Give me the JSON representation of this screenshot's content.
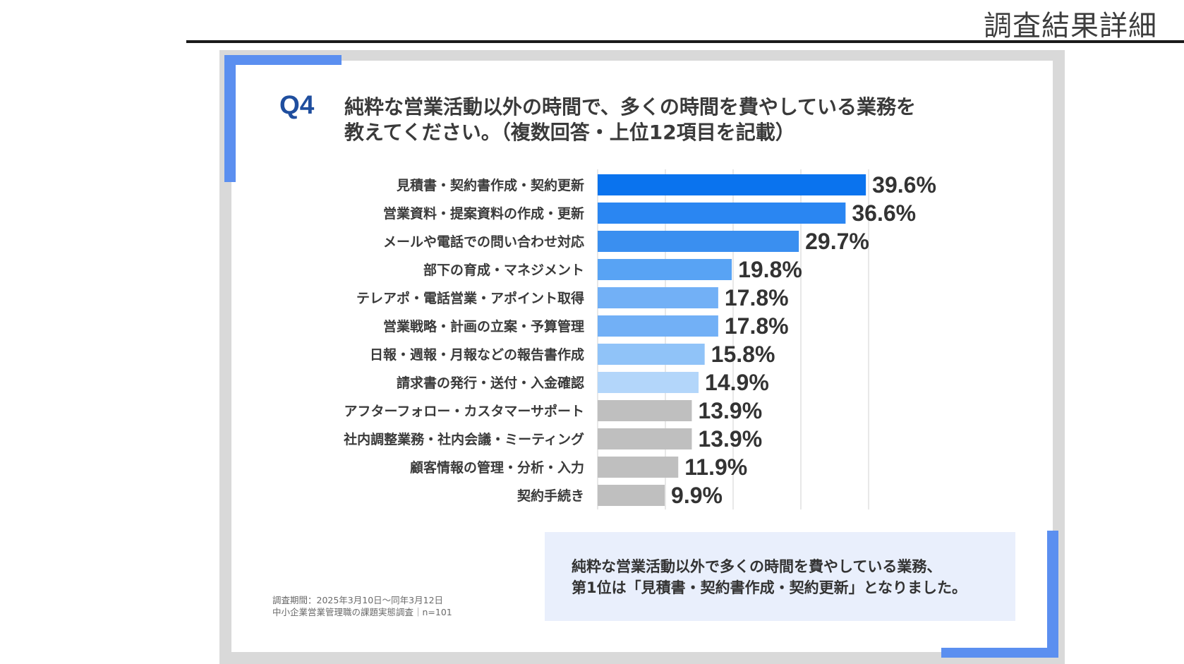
{
  "header": {
    "title": "調査結果詳細"
  },
  "question": {
    "number": "Q4",
    "line1": "純粋な営業活動以外の時間で、多くの時間を費やしている業務を",
    "line2": "教えてください。（複数回答・上位12項目を記載）"
  },
  "chart_data": {
    "type": "bar",
    "orientation": "horizontal",
    "title": "純粋な営業活動以外の時間で、多くの時間を費やしている業務を教えてください。（複数回答・上位12項目を記載）",
    "unit": "%",
    "xlim": [
      0,
      40
    ],
    "gridlines": [
      10,
      20,
      30,
      40
    ],
    "categories": [
      "見積書・契約書作成・契約更新",
      "営業資料・提案資料の作成・更新",
      "メールや電話での問い合わせ対応",
      "部下の育成・マネジメント",
      "テレアポ・電話営業・アポイント取得",
      "営業戦略・計画の立案・予算管理",
      "日報・週報・月報などの報告書作成",
      "請求書の発行・送付・入金確認",
      "アフターフォロー・カスタマーサポート",
      "社内調整業務・社内会議・ミーティング",
      "顧客情報の管理・分析・入力",
      "契約手続き"
    ],
    "values": [
      39.6,
      36.6,
      29.7,
      19.8,
      17.8,
      17.8,
      15.8,
      14.9,
      13.9,
      13.9,
      11.9,
      9.9
    ],
    "value_labels": [
      "39.6%",
      "36.6%",
      "29.7%",
      "19.8%",
      "17.8%",
      "17.8%",
      "15.8%",
      "14.9%",
      "13.9%",
      "13.9%",
      "11.9%",
      "9.9%"
    ],
    "bar_colors": [
      "#0a73ee",
      "#2a86f2",
      "#3a8ff0",
      "#58a3f4",
      "#72b0f6",
      "#72b0f6",
      "#90c3f8",
      "#b3d6fa",
      "#bfbfbf",
      "#bfbfbf",
      "#bfbfbf",
      "#bfbfbf"
    ]
  },
  "summary": {
    "line1": "純粋な営業活動以外で多くの時間を費やしている業務、",
    "line2": "第1位は「見積書・契約書作成・契約更新」となりました。"
  },
  "source": {
    "period": "調査期間：2025年3月10日～同年3月12日",
    "survey": "中小企業営業管理職の課題実態調査｜n=101"
  },
  "colors": {
    "accent": "#5b8ff0",
    "question_number": "#1f4e9e",
    "summary_bg": "#e9effc",
    "frame": "#d9d9d9"
  }
}
